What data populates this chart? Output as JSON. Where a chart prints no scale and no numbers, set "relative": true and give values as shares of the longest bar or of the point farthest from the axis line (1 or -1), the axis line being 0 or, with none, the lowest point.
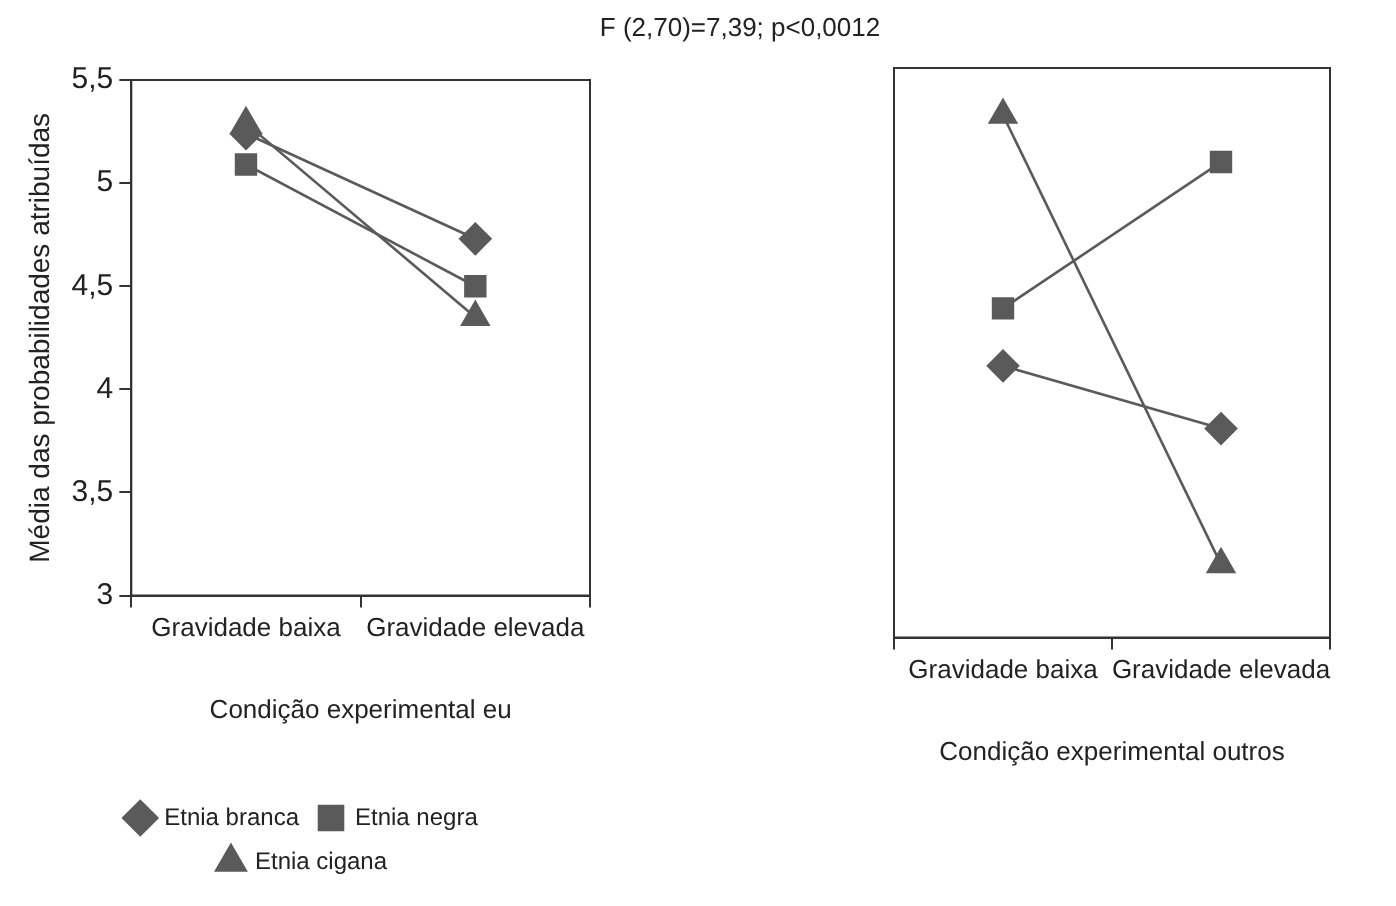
{
  "chart_data": [
    {
      "type": "line",
      "title": "F (2,70)=7,39; p<0,0012",
      "xlabel": "Condição experimental eu",
      "ylabel": "Média das probabilidades atribuídas",
      "categories": [
        "Gravidade baixa",
        "Gravidade elevada"
      ],
      "series": [
        {
          "name": "Etnia branca",
          "color": "#5a5a5a",
          "marker": "diamond",
          "values": [
            5.24,
            4.73
          ]
        },
        {
          "name": "Etnia negra",
          "color": "#5a5a5a",
          "marker": "square",
          "values": [
            5.09,
            4.5
          ]
        },
        {
          "name": "Etnia cigana",
          "color": "#5a5a5a",
          "marker": "triangle",
          "values": [
            5.29,
            4.35
          ]
        }
      ],
      "ylim": [
        3,
        5.5
      ],
      "yticks": [
        {
          "value": 3,
          "label": "3"
        },
        {
          "value": 3.5,
          "label": "3,5"
        },
        {
          "value": 4,
          "label": "4"
        },
        {
          "value": 4.5,
          "label": "4,5"
        },
        {
          "value": 5,
          "label": "5"
        },
        {
          "value": 5.5,
          "label": "5,5"
        }
      ],
      "grid": false,
      "legend": "bottom"
    },
    {
      "type": "line",
      "xlabel": "Condição experimental outros",
      "categories": [
        "Gravidade baixa",
        "Gravidade elevada"
      ],
      "series": [
        {
          "color": "#5a5a5a",
          "marker": "diamond",
          "values": [
            0.52,
            0.4
          ]
        },
        {
          "color": "#5a5a5a",
          "marker": "square",
          "values": [
            0.63,
            0.91
          ]
        },
        {
          "color": "#5a5a5a",
          "marker": "triangle",
          "values": [
            1,
            0.14
          ]
        }
      ],
      "relative": true,
      "tick_labels": "x",
      "grid": false,
      "legend": false
    }
  ]
}
